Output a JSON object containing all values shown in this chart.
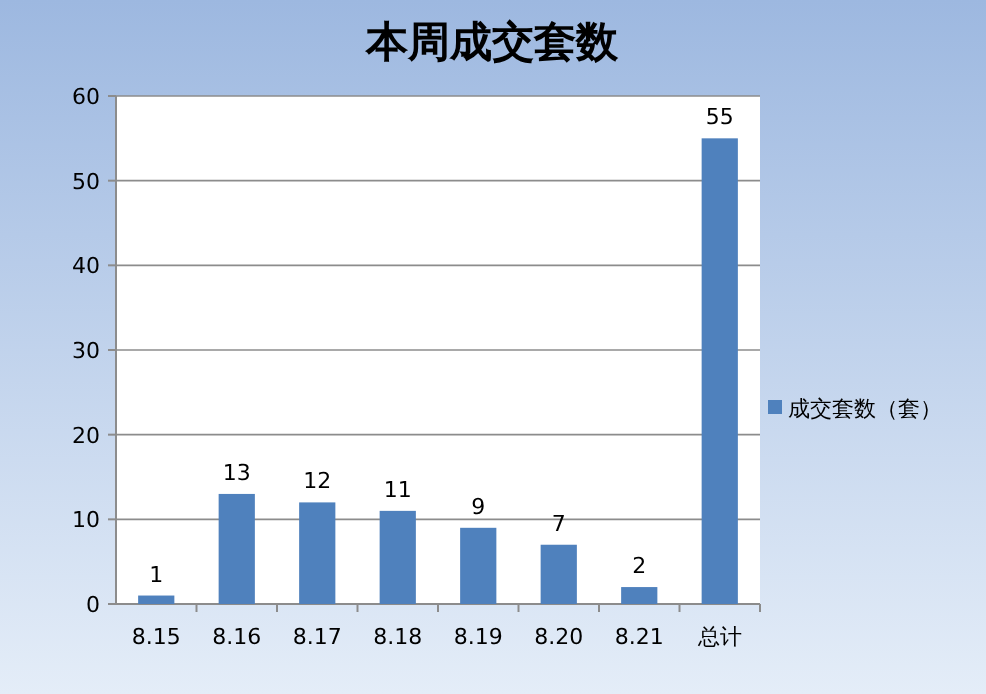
{
  "chart_data": {
    "type": "bar",
    "title": "本周成交套数",
    "categories": [
      "8.15",
      "8.16",
      "8.17",
      "8.18",
      "8.19",
      "8.20",
      "8.21",
      "总计"
    ],
    "series": [
      {
        "name": "成交套数（套）",
        "color": "#4f81bd",
        "values": [
          1,
          13,
          12,
          11,
          9,
          7,
          2,
          55
        ]
      }
    ],
    "ylim": [
      0,
      60
    ],
    "yticks": [
      0,
      10,
      20,
      30,
      40,
      50,
      60
    ],
    "grid": "y",
    "legend": "right",
    "data_labels": true
  }
}
